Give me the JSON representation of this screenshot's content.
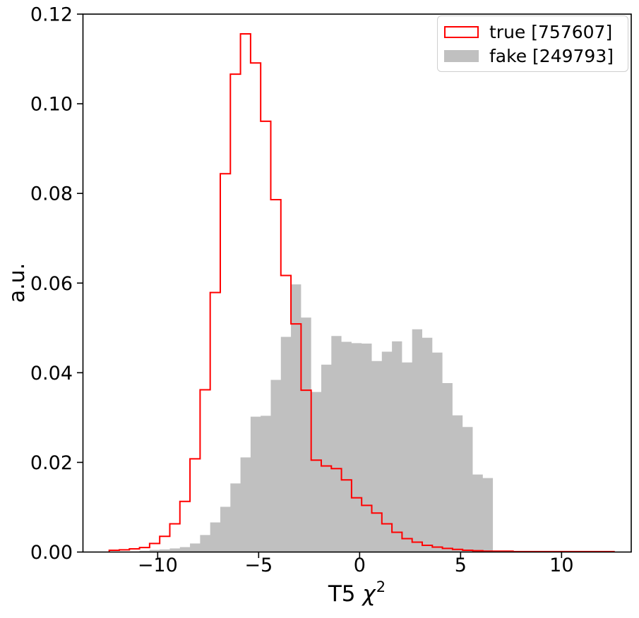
{
  "figure": {
    "background": "#ffffff",
    "frame_color": "#000000"
  },
  "chart_data": {
    "type": "bar",
    "subtype": "histogram",
    "title": "",
    "xlabel": "T5 χ²",
    "xlabel_parts": {
      "prefix": "T5 ",
      "symbol": "χ",
      "superscript": "2"
    },
    "ylabel": "a.u.",
    "xlim": [
      -13.7,
      13.45
    ],
    "ylim": [
      0,
      0.12
    ],
    "grid": false,
    "legend_position": "upper right",
    "x_ticks": {
      "values": [
        -10,
        -5,
        0,
        5,
        10
      ],
      "labels": [
        "−10",
        "−5",
        "0",
        "5",
        "10"
      ]
    },
    "y_ticks": {
      "values": [
        0,
        0.02,
        0.04,
        0.06,
        0.08,
        0.1,
        0.12
      ],
      "labels": [
        "0.00",
        "0.02",
        "0.04",
        "0.06",
        "0.08",
        "0.10",
        "0.12"
      ]
    },
    "bin_start": -12.4,
    "bin_width": 0.5,
    "series": [
      {
        "name": "true [757607]",
        "count": 757607,
        "style": "step-outline",
        "color": "#ff0000",
        "values": [
          0.0004,
          0.0005,
          0.0007,
          0.001,
          0.0019,
          0.0035,
          0.0063,
          0.0113,
          0.0208,
          0.0362,
          0.0579,
          0.0844,
          0.1066,
          0.1156,
          0.1091,
          0.0961,
          0.0786,
          0.0617,
          0.0509,
          0.0361,
          0.0205,
          0.0192,
          0.0186,
          0.0161,
          0.0121,
          0.0104,
          0.0087,
          0.0063,
          0.0044,
          0.003,
          0.0022,
          0.0015,
          0.0011,
          0.0008,
          0.0006,
          0.0004,
          0.0003,
          0.0002,
          0.0002,
          0.0002,
          0.0001,
          0.0001,
          0.0001,
          0.0001,
          0.0001,
          0.0001,
          0.0001,
          0.0001,
          0.0001,
          0.0001
        ]
      },
      {
        "name": "fake [249793]",
        "count": 249793,
        "style": "filled",
        "color": "#c0c0c0",
        "values": [
          0.0,
          0.0,
          0.0001,
          0.0003,
          0.0005,
          0.0006,
          0.0008,
          0.0011,
          0.0019,
          0.0038,
          0.0066,
          0.0101,
          0.0153,
          0.0211,
          0.0302,
          0.0304,
          0.0384,
          0.048,
          0.0597,
          0.0523,
          0.0357,
          0.0418,
          0.0482,
          0.0469,
          0.0466,
          0.0465,
          0.0426,
          0.0447,
          0.047,
          0.0423,
          0.0497,
          0.0478,
          0.0445,
          0.0377,
          0.0305,
          0.0279,
          0.0173,
          0.0165
        ]
      }
    ]
  }
}
